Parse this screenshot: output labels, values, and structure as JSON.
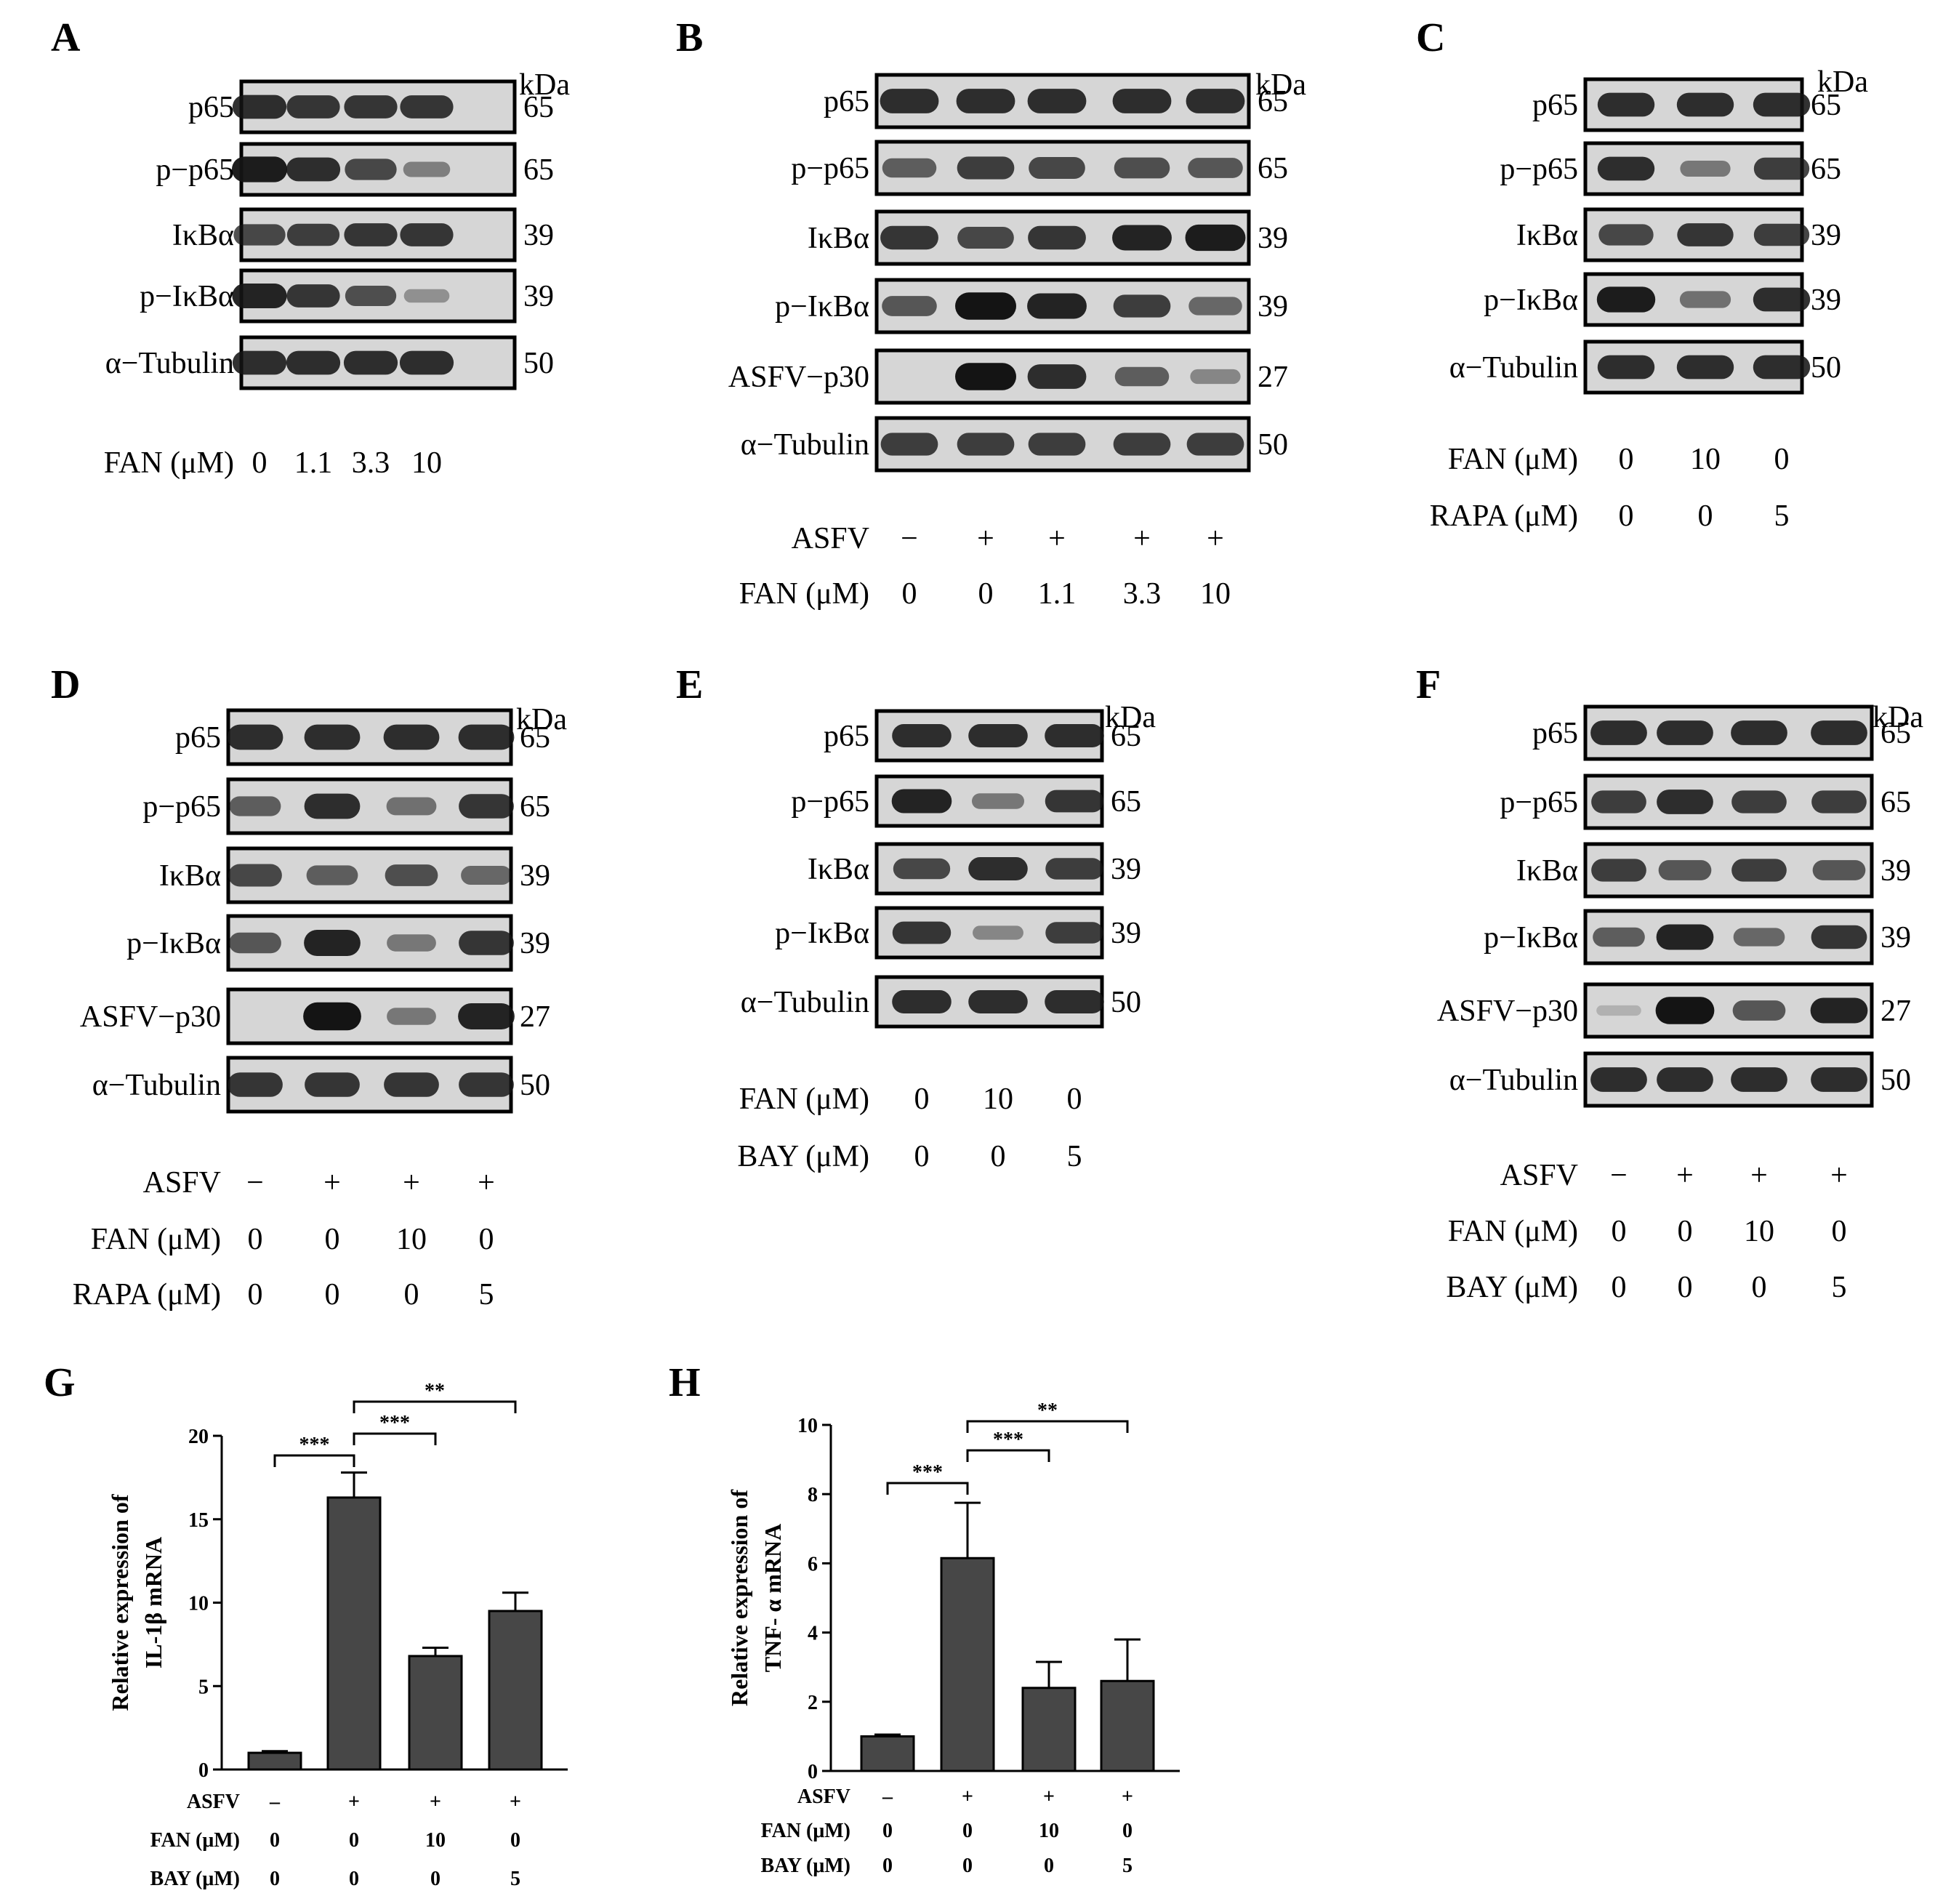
{
  "kda_label": "kDa",
  "panels": [
    {
      "letter": "A",
      "rows": [
        {
          "label": "p65",
          "kda": "65",
          "bands": [
            0.85,
            0.8,
            0.8,
            0.8
          ]
        },
        {
          "label": "p−p65",
          "kda": "65",
          "bands": [
            0.95,
            0.85,
            0.7,
            0.35
          ]
        },
        {
          "label": "IκBα",
          "kda": "39",
          "bands": [
            0.7,
            0.75,
            0.8,
            0.8
          ]
        },
        {
          "label": "p−IκBα",
          "kda": "39",
          "bands": [
            0.9,
            0.8,
            0.65,
            0.25
          ]
        },
        {
          "label": "α−Tubulin",
          "kda": "50",
          "bands": [
            0.85,
            0.85,
            0.85,
            0.85
          ]
        }
      ],
      "conds": [
        {
          "label": "FAN (μM)",
          "values": [
            "0",
            "1.1",
            "3.3",
            "10"
          ]
        }
      ]
    },
    {
      "letter": "B",
      "rows": [
        {
          "label": "p65",
          "kda": "65",
          "bands": [
            0.85,
            0.85,
            0.85,
            0.85,
            0.85
          ]
        },
        {
          "label": "p−p65",
          "kda": "65",
          "bands": [
            0.55,
            0.75,
            0.7,
            0.65,
            0.6
          ]
        },
        {
          "label": "IκBα",
          "kda": "39",
          "bands": [
            0.8,
            0.7,
            0.8,
            0.9,
            0.95
          ]
        },
        {
          "label": "p−IκBα",
          "kda": "39",
          "bands": [
            0.6,
            1.0,
            0.9,
            0.75,
            0.5
          ]
        },
        {
          "label": "ASFV−p30",
          "kda": "27",
          "bands": [
            0.0,
            1.0,
            0.85,
            0.55,
            0.3
          ]
        },
        {
          "label": "α−Tubulin",
          "kda": "50",
          "bands": [
            0.75,
            0.75,
            0.75,
            0.75,
            0.75
          ]
        }
      ],
      "conds": [
        {
          "label": "ASFV",
          "values": [
            "−",
            "+",
            "+",
            "+",
            "+"
          ]
        },
        {
          "label": "FAN (μM)",
          "values": [
            "0",
            "0",
            "1.1",
            "3.3",
            "10"
          ]
        }
      ]
    },
    {
      "letter": "C",
      "rows": [
        {
          "label": "p65",
          "kda": "65",
          "bands": [
            0.85,
            0.85,
            0.85
          ]
        },
        {
          "label": "p−p65",
          "kda": "65",
          "bands": [
            0.85,
            0.4,
            0.75
          ]
        },
        {
          "label": "IκBα",
          "kda": "39",
          "bands": [
            0.7,
            0.8,
            0.75
          ]
        },
        {
          "label": "p−IκBα",
          "kda": "39",
          "bands": [
            0.95,
            0.45,
            0.85
          ]
        },
        {
          "label": "α−Tubulin",
          "kda": "50",
          "bands": [
            0.85,
            0.85,
            0.85
          ]
        }
      ],
      "conds": [
        {
          "label": "FAN (μM)",
          "values": [
            "0",
            "10",
            "0"
          ]
        },
        {
          "label": "RAPA (μM)",
          "values": [
            "0",
            "0",
            "5"
          ]
        }
      ]
    },
    {
      "letter": "D",
      "rows": [
        {
          "label": "p65",
          "kda": "65",
          "bands": [
            0.85,
            0.85,
            0.85,
            0.85
          ]
        },
        {
          "label": "p−p65",
          "kda": "65",
          "bands": [
            0.55,
            0.85,
            0.45,
            0.8
          ]
        },
        {
          "label": "IκBα",
          "kda": "39",
          "bands": [
            0.7,
            0.55,
            0.65,
            0.5
          ]
        },
        {
          "label": "p−IκBα",
          "kda": "39",
          "bands": [
            0.6,
            0.9,
            0.4,
            0.8
          ]
        },
        {
          "label": "ASFV−p30",
          "kda": "27",
          "bands": [
            0.0,
            1.0,
            0.4,
            0.9
          ]
        },
        {
          "label": "α−Tubulin",
          "kda": "50",
          "bands": [
            0.8,
            0.8,
            0.8,
            0.8
          ]
        }
      ],
      "conds": [
        {
          "label": "ASFV",
          "values": [
            "−",
            "+",
            "+",
            "+"
          ]
        },
        {
          "label": "FAN (μM)",
          "values": [
            "0",
            "0",
            "10",
            "0"
          ]
        },
        {
          "label": "RAPA (μM)",
          "values": [
            "0",
            "0",
            "0",
            "5"
          ]
        }
      ]
    },
    {
      "letter": "E",
      "rows": [
        {
          "label": "p65",
          "kda": "65",
          "bands": [
            0.85,
            0.85,
            0.85
          ]
        },
        {
          "label": "p−p65",
          "kda": "65",
          "bands": [
            0.9,
            0.4,
            0.8
          ]
        },
        {
          "label": "IκBα",
          "kda": "39",
          "bands": [
            0.7,
            0.85,
            0.75
          ]
        },
        {
          "label": "p−IκBα",
          "kda": "39",
          "bands": [
            0.8,
            0.3,
            0.75
          ]
        },
        {
          "label": "α−Tubulin",
          "kda": "50",
          "bands": [
            0.85,
            0.85,
            0.85
          ]
        }
      ],
      "conds": [
        {
          "label": "FAN (μM)",
          "values": [
            "0",
            "10",
            "0"
          ]
        },
        {
          "label": "BAY (μM)",
          "values": [
            "0",
            "0",
            "5"
          ]
        }
      ]
    },
    {
      "letter": "F",
      "rows": [
        {
          "label": "p65",
          "kda": "65",
          "bands": [
            0.85,
            0.85,
            0.85,
            0.85
          ]
        },
        {
          "label": "p−p65",
          "kda": "65",
          "bands": [
            0.75,
            0.85,
            0.75,
            0.75
          ]
        },
        {
          "label": "IκBα",
          "kda": "39",
          "bands": [
            0.75,
            0.6,
            0.75,
            0.6
          ]
        },
        {
          "label": "p−IκBα",
          "kda": "39",
          "bands": [
            0.55,
            0.9,
            0.5,
            0.8
          ]
        },
        {
          "label": "ASFV−p30",
          "kda": "27",
          "bands": [
            0.05,
            1.0,
            0.6,
            0.9
          ]
        },
        {
          "label": "α−Tubulin",
          "kda": "50",
          "bands": [
            0.85,
            0.85,
            0.85,
            0.85
          ]
        }
      ],
      "conds": [
        {
          "label": "ASFV",
          "values": [
            "−",
            "+",
            "+",
            "+"
          ]
        },
        {
          "label": "FAN (μM)",
          "values": [
            "0",
            "0",
            "10",
            "0"
          ]
        },
        {
          "label": "BAY (μM)",
          "values": [
            "0",
            "0",
            "0",
            "5"
          ]
        }
      ]
    }
  ],
  "chart_data": [
    {
      "type": "bar",
      "letter": "G",
      "ylabel_lines": [
        "Relative  expression of",
        "IL-1β mRNA"
      ],
      "ylim": [
        0,
        20
      ],
      "yticks": [
        "0",
        "5",
        "10",
        "15",
        "20"
      ],
      "values": [
        1.0,
        16.3,
        6.8,
        9.5
      ],
      "errors": [
        0.1,
        1.5,
        0.5,
        1.1
      ],
      "bar_color": "#474747",
      "conds": [
        {
          "label": "ASFV",
          "values": [
            "–",
            "+",
            "+",
            "+"
          ]
        },
        {
          "label": "FAN (μM)",
          "values": [
            "0",
            "0",
            "10",
            "0"
          ]
        },
        {
          "label": "BAY (μM)",
          "values": [
            "0",
            "0",
            "0",
            "5"
          ]
        }
      ],
      "significance": [
        {
          "from": 0,
          "to": 1,
          "text": "***"
        },
        {
          "from": 1,
          "to": 2,
          "text": "***"
        },
        {
          "from": 1,
          "to": 3,
          "text": "**"
        }
      ]
    },
    {
      "type": "bar",
      "letter": "H",
      "ylabel_lines": [
        "Relative  expression of",
        "TNF- α mRNA"
      ],
      "ylim": [
        0,
        10
      ],
      "yticks": [
        "0",
        "2",
        "4",
        "6",
        "8",
        "10"
      ],
      "values": [
        1.0,
        6.15,
        2.4,
        2.6
      ],
      "errors": [
        0.05,
        1.6,
        0.75,
        1.2
      ],
      "bar_color": "#474747",
      "conds": [
        {
          "label": "ASFV",
          "values": [
            "–",
            "+",
            "+",
            "+"
          ]
        },
        {
          "label": "FAN (μM)",
          "values": [
            "0",
            "0",
            "10",
            "0"
          ]
        },
        {
          "label": "BAY (μM)",
          "values": [
            "0",
            "0",
            "0",
            "5"
          ]
        }
      ],
      "significance": [
        {
          "from": 0,
          "to": 1,
          "text": "***"
        },
        {
          "from": 1,
          "to": 2,
          "text": "***"
        },
        {
          "from": 1,
          "to": 3,
          "text": "**"
        }
      ]
    }
  ]
}
